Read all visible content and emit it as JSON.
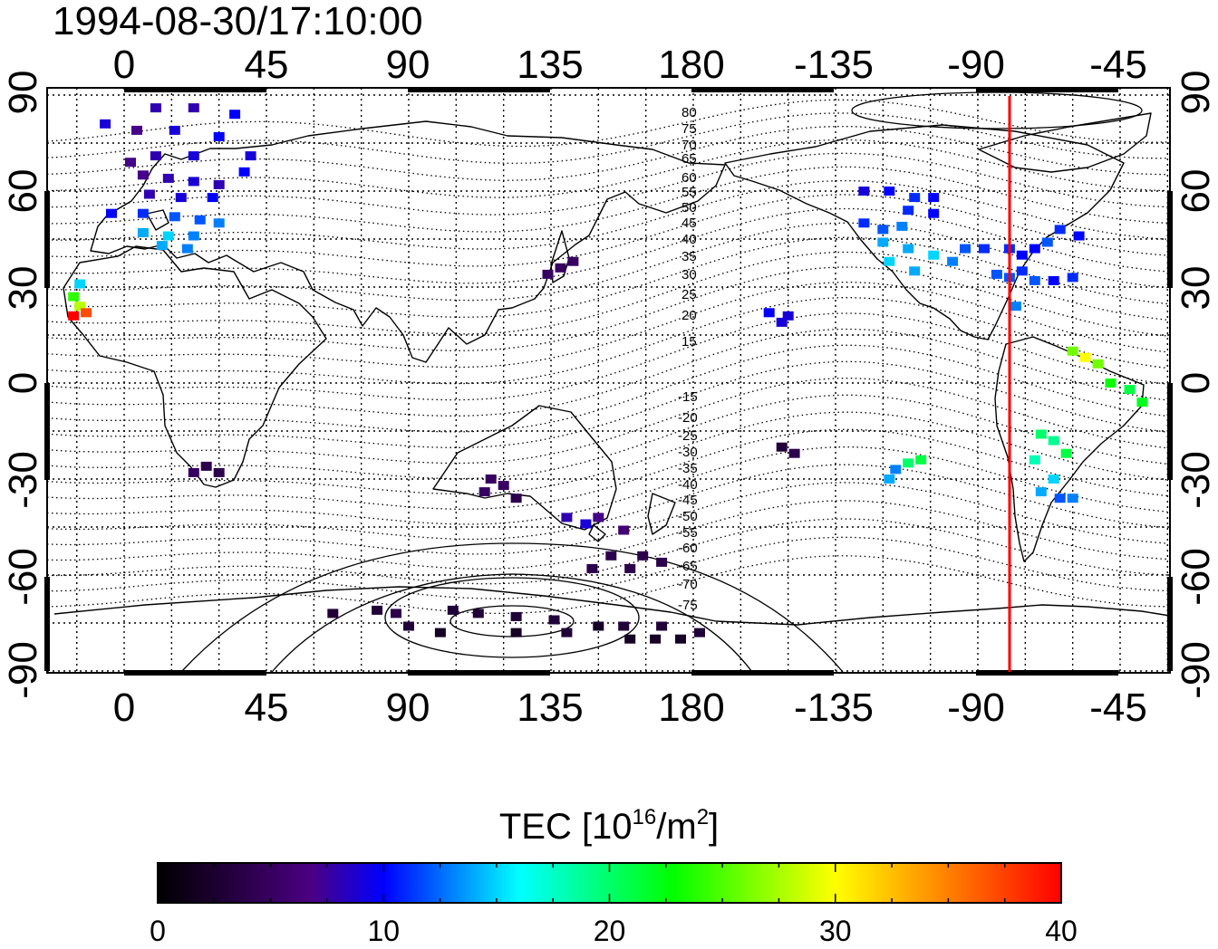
{
  "map": {
    "timestamp": "1994-08-30/17:10:00",
    "longitude_tick_labels": [
      "0",
      "45",
      "90",
      "135",
      "180",
      "-135",
      "-90",
      "-45"
    ],
    "latitude_tick_labels": [
      "90",
      "60",
      "30",
      "0",
      "-30",
      "-60",
      "-90"
    ],
    "contour_labels_north": [
      "80",
      "75",
      "70",
      "65",
      "60",
      "55",
      "50",
      "45",
      "40",
      "35",
      "30",
      "25",
      "20",
      "15"
    ],
    "contour_labels_south": [
      "-15",
      "-20",
      "-25",
      "-30",
      "-35",
      "-40",
      "-45",
      "-50",
      "-55",
      "-60",
      "-65",
      "-70",
      "-75"
    ],
    "marker_line": {
      "longitude": -75,
      "color": "#ff0000"
    }
  },
  "colorbar": {
    "title": "TEC [10",
    "unit_exp1": "16",
    "unit_mid": "/m",
    "unit_exp2": "2",
    "unit_end": "]",
    "min": 0,
    "max": 40,
    "tick_labels": [
      "0",
      "10",
      "20",
      "30",
      "40"
    ],
    "colors": [
      "#000000",
      "#4b0082",
      "#0000ff",
      "#00ffff",
      "#00ff00",
      "#ffff00",
      "#ff0000"
    ]
  }
}
